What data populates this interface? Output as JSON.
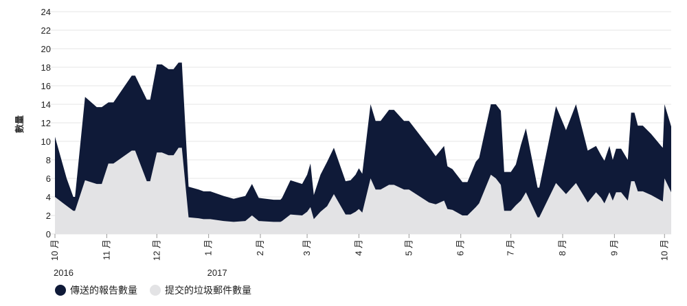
{
  "chart_data": {
    "type": "area",
    "ylabel": "數量",
    "ylim": [
      0,
      24
    ],
    "y_ticks": [
      0,
      2,
      4,
      6,
      8,
      10,
      12,
      14,
      16,
      18,
      20,
      22,
      24
    ],
    "x_range": [
      "2016-10-01",
      "2017-10-05"
    ],
    "x_ticks": [
      {
        "date": "2016-10-01",
        "label": "10 月",
        "year": "2016"
      },
      {
        "date": "2016-11-01",
        "label": "11 月",
        "year": ""
      },
      {
        "date": "2016-12-01",
        "label": "12 月",
        "year": ""
      },
      {
        "date": "2017-01-01",
        "label": "1 月",
        "year": "2017"
      },
      {
        "date": "2017-02-01",
        "label": "2 月",
        "year": ""
      },
      {
        "date": "2017-03-01",
        "label": "3 月",
        "year": ""
      },
      {
        "date": "2017-04-01",
        "label": "4 月",
        "year": ""
      },
      {
        "date": "2017-05-01",
        "label": "5 月",
        "year": ""
      },
      {
        "date": "2017-06-01",
        "label": "6 月",
        "year": ""
      },
      {
        "date": "2017-07-01",
        "label": "7 月",
        "year": ""
      },
      {
        "date": "2017-08-01",
        "label": "8 月",
        "year": ""
      },
      {
        "date": "2017-09-01",
        "label": "9 月",
        "year": ""
      },
      {
        "date": "2017-10-01",
        "label": "10 月",
        "year": ""
      }
    ],
    "series": [
      {
        "name": "傳送的報告數量",
        "color": "#0f1a38",
        "points": [
          [
            "2016-10-01",
            10.5
          ],
          [
            "2016-10-08",
            6.0
          ],
          [
            "2016-10-12",
            4.0
          ],
          [
            "2016-10-13",
            4.0
          ],
          [
            "2016-10-19",
            14.8
          ],
          [
            "2016-10-26",
            13.7
          ],
          [
            "2016-10-29",
            13.7
          ],
          [
            "2016-11-02",
            14.2
          ],
          [
            "2016-11-05",
            14.2
          ],
          [
            "2016-11-16",
            17.1
          ],
          [
            "2016-11-18",
            17.1
          ],
          [
            "2016-11-25",
            14.5
          ],
          [
            "2016-11-27",
            14.5
          ],
          [
            "2016-12-01",
            18.3
          ],
          [
            "2016-12-04",
            18.3
          ],
          [
            "2016-12-08",
            17.8
          ],
          [
            "2016-12-11",
            17.8
          ],
          [
            "2016-12-14",
            18.5
          ],
          [
            "2016-12-16",
            18.5
          ],
          [
            "2016-12-20",
            5.1
          ],
          [
            "2016-12-26",
            4.8
          ],
          [
            "2016-12-29",
            4.6
          ],
          [
            "2017-01-02",
            4.6
          ],
          [
            "2017-01-10",
            4.1
          ],
          [
            "2017-01-16",
            3.8
          ],
          [
            "2017-01-23",
            4.1
          ],
          [
            "2017-01-27",
            5.4
          ],
          [
            "2017-01-31",
            3.9
          ],
          [
            "2017-02-09",
            3.7
          ],
          [
            "2017-02-13",
            3.7
          ],
          [
            "2017-02-14",
            3.9
          ],
          [
            "2017-02-19",
            5.8
          ],
          [
            "2017-02-26",
            5.4
          ],
          [
            "2017-03-01",
            6.4
          ],
          [
            "2017-03-03",
            7.6
          ],
          [
            "2017-03-05",
            4.2
          ],
          [
            "2017-03-09",
            6.4
          ],
          [
            "2017-03-13",
            7.8
          ],
          [
            "2017-03-17",
            9.3
          ],
          [
            "2017-03-24",
            5.7
          ],
          [
            "2017-03-27",
            5.8
          ],
          [
            "2017-03-30",
            6.4
          ],
          [
            "2017-04-01",
            7.1
          ],
          [
            "2017-04-03",
            6.5
          ],
          [
            "2017-04-08",
            14.0
          ],
          [
            "2017-04-11",
            12.2
          ],
          [
            "2017-04-14",
            12.2
          ],
          [
            "2017-04-19",
            13.4
          ],
          [
            "2017-04-22",
            13.4
          ],
          [
            "2017-04-28",
            12.2
          ],
          [
            "2017-05-01",
            12.2
          ],
          [
            "2017-05-13",
            9.4
          ],
          [
            "2017-05-17",
            8.4
          ],
          [
            "2017-05-22",
            9.5
          ],
          [
            "2017-05-24",
            7.3
          ],
          [
            "2017-05-27",
            7.0
          ],
          [
            "2017-06-02",
            5.6
          ],
          [
            "2017-06-05",
            5.6
          ],
          [
            "2017-06-10",
            7.8
          ],
          [
            "2017-06-12",
            8.2
          ],
          [
            "2017-06-19",
            14.0
          ],
          [
            "2017-06-22",
            14.0
          ],
          [
            "2017-06-25",
            13.3
          ],
          [
            "2017-06-27",
            6.7
          ],
          [
            "2017-07-01",
            6.7
          ],
          [
            "2017-07-04",
            7.5
          ],
          [
            "2017-07-07",
            9.6
          ],
          [
            "2017-07-10",
            11.4
          ],
          [
            "2017-07-17",
            5.0
          ],
          [
            "2017-07-18",
            5.0
          ],
          [
            "2017-07-28",
            13.8
          ],
          [
            "2017-08-03",
            11.2
          ],
          [
            "2017-08-09",
            14.0
          ],
          [
            "2017-08-16",
            9.0
          ],
          [
            "2017-08-21",
            9.5
          ],
          [
            "2017-08-24",
            8.5
          ],
          [
            "2017-08-26",
            7.9
          ],
          [
            "2017-08-29",
            9.5
          ],
          [
            "2017-08-31",
            8.0
          ],
          [
            "2017-09-02",
            9.2
          ],
          [
            "2017-09-05",
            9.2
          ],
          [
            "2017-09-09",
            8.0
          ],
          [
            "2017-09-11",
            13.1
          ],
          [
            "2017-09-13",
            13.1
          ],
          [
            "2017-09-15",
            11.7
          ],
          [
            "2017-09-18",
            11.7
          ],
          [
            "2017-09-23",
            10.8
          ],
          [
            "2017-09-29",
            9.5
          ],
          [
            "2017-09-30",
            9.3
          ],
          [
            "2017-10-01",
            14.0
          ],
          [
            "2017-10-05",
            11.6
          ]
        ]
      },
      {
        "name": "提交的垃圾郵件數量",
        "color": "#e3e3e5",
        "points": [
          [
            "2016-10-01",
            4.0
          ],
          [
            "2016-10-06",
            3.3
          ],
          [
            "2016-10-12",
            2.5
          ],
          [
            "2016-10-13",
            2.5
          ],
          [
            "2016-10-19",
            5.8
          ],
          [
            "2016-10-26",
            5.4
          ],
          [
            "2016-10-29",
            5.4
          ],
          [
            "2016-11-02",
            7.6
          ],
          [
            "2016-11-05",
            7.6
          ],
          [
            "2016-11-16",
            9.0
          ],
          [
            "2016-11-18",
            9.0
          ],
          [
            "2016-11-25",
            5.7
          ],
          [
            "2016-11-27",
            5.7
          ],
          [
            "2016-12-01",
            8.8
          ],
          [
            "2016-12-04",
            8.8
          ],
          [
            "2016-12-08",
            8.5
          ],
          [
            "2016-12-11",
            8.5
          ],
          [
            "2016-12-14",
            9.3
          ],
          [
            "2016-12-16",
            9.3
          ],
          [
            "2016-12-20",
            1.8
          ],
          [
            "2016-12-26",
            1.7
          ],
          [
            "2016-12-29",
            1.6
          ],
          [
            "2017-01-02",
            1.6
          ],
          [
            "2017-01-10",
            1.4
          ],
          [
            "2017-01-16",
            1.3
          ],
          [
            "2017-01-23",
            1.4
          ],
          [
            "2017-01-27",
            2.0
          ],
          [
            "2017-01-31",
            1.4
          ],
          [
            "2017-02-09",
            1.3
          ],
          [
            "2017-02-13",
            1.3
          ],
          [
            "2017-02-14",
            1.4
          ],
          [
            "2017-02-19",
            2.1
          ],
          [
            "2017-02-26",
            2.0
          ],
          [
            "2017-03-01",
            2.4
          ],
          [
            "2017-03-03",
            2.9
          ],
          [
            "2017-03-05",
            1.6
          ],
          [
            "2017-03-09",
            2.4
          ],
          [
            "2017-03-13",
            3.0
          ],
          [
            "2017-03-17",
            4.3
          ],
          [
            "2017-03-24",
            2.1
          ],
          [
            "2017-03-27",
            2.1
          ],
          [
            "2017-03-30",
            2.4
          ],
          [
            "2017-04-01",
            2.7
          ],
          [
            "2017-04-03",
            2.3
          ],
          [
            "2017-04-08",
            6.0
          ],
          [
            "2017-04-11",
            4.8
          ],
          [
            "2017-04-14",
            4.8
          ],
          [
            "2017-04-19",
            5.3
          ],
          [
            "2017-04-22",
            5.3
          ],
          [
            "2017-04-28",
            4.8
          ],
          [
            "2017-05-01",
            4.8
          ],
          [
            "2017-05-13",
            3.4
          ],
          [
            "2017-05-17",
            3.2
          ],
          [
            "2017-05-22",
            3.6
          ],
          [
            "2017-05-24",
            2.7
          ],
          [
            "2017-05-27",
            2.6
          ],
          [
            "2017-06-02",
            2.0
          ],
          [
            "2017-06-05",
            2.0
          ],
          [
            "2017-06-10",
            2.9
          ],
          [
            "2017-06-12",
            3.3
          ],
          [
            "2017-06-19",
            6.4
          ],
          [
            "2017-06-22",
            6.0
          ],
          [
            "2017-06-25",
            5.3
          ],
          [
            "2017-06-27",
            2.5
          ],
          [
            "2017-07-01",
            2.5
          ],
          [
            "2017-07-04",
            3.1
          ],
          [
            "2017-07-07",
            3.6
          ],
          [
            "2017-07-10",
            4.5
          ],
          [
            "2017-07-17",
            1.8
          ],
          [
            "2017-07-18",
            1.8
          ],
          [
            "2017-07-28",
            5.5
          ],
          [
            "2017-08-03",
            4.3
          ],
          [
            "2017-08-09",
            5.5
          ],
          [
            "2017-08-16",
            3.4
          ],
          [
            "2017-08-21",
            4.5
          ],
          [
            "2017-08-24",
            3.9
          ],
          [
            "2017-08-26",
            3.3
          ],
          [
            "2017-08-29",
            4.5
          ],
          [
            "2017-08-31",
            3.6
          ],
          [
            "2017-09-02",
            4.5
          ],
          [
            "2017-09-05",
            4.5
          ],
          [
            "2017-09-09",
            3.6
          ],
          [
            "2017-09-11",
            5.7
          ],
          [
            "2017-09-13",
            5.7
          ],
          [
            "2017-09-15",
            4.6
          ],
          [
            "2017-09-18",
            4.6
          ],
          [
            "2017-09-23",
            4.2
          ],
          [
            "2017-09-29",
            3.6
          ],
          [
            "2017-09-30",
            3.5
          ],
          [
            "2017-10-01",
            6.0
          ],
          [
            "2017-10-05",
            4.5
          ]
        ]
      }
    ],
    "legend_position": "bottom-left",
    "grid": true
  }
}
